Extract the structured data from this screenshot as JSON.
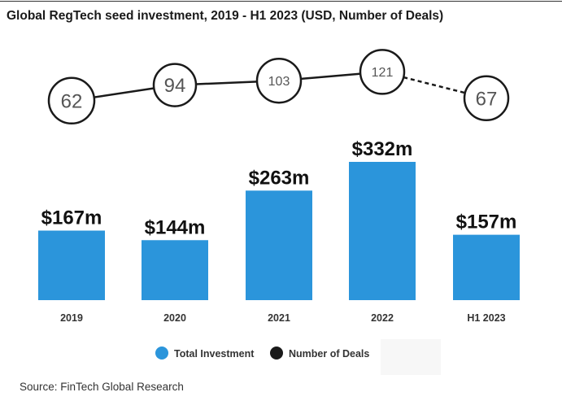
{
  "title": "Global RegTech seed investment, 2019 - H1 2023 (USD, Number of Deals)",
  "source": "Source: FinTech Global Research",
  "colors": {
    "bar": "#2b95db",
    "line": "#1a1a1a",
    "circle_fill": "#ffffff"
  },
  "chart_data": {
    "type": "bar",
    "categories": [
      "2019",
      "2020",
      "2021",
      "2022",
      "H1 2023"
    ],
    "series": [
      {
        "name": "Total Investment",
        "type": "bar",
        "values": [
          167,
          144,
          263,
          332,
          157
        ],
        "labels": [
          "$167m",
          "$144m",
          "$263m",
          "$332m",
          "$157m"
        ]
      },
      {
        "name": "Number of Deals",
        "type": "line",
        "values": [
          62,
          94,
          103,
          121,
          67
        ],
        "labels": [
          "62",
          "94",
          "103",
          "121",
          "67"
        ],
        "dashed_last_segment": true
      }
    ],
    "legend": [
      "Total Investment",
      "Number of Deals"
    ],
    "legend_placement": "bottom",
    "grid": false
  }
}
